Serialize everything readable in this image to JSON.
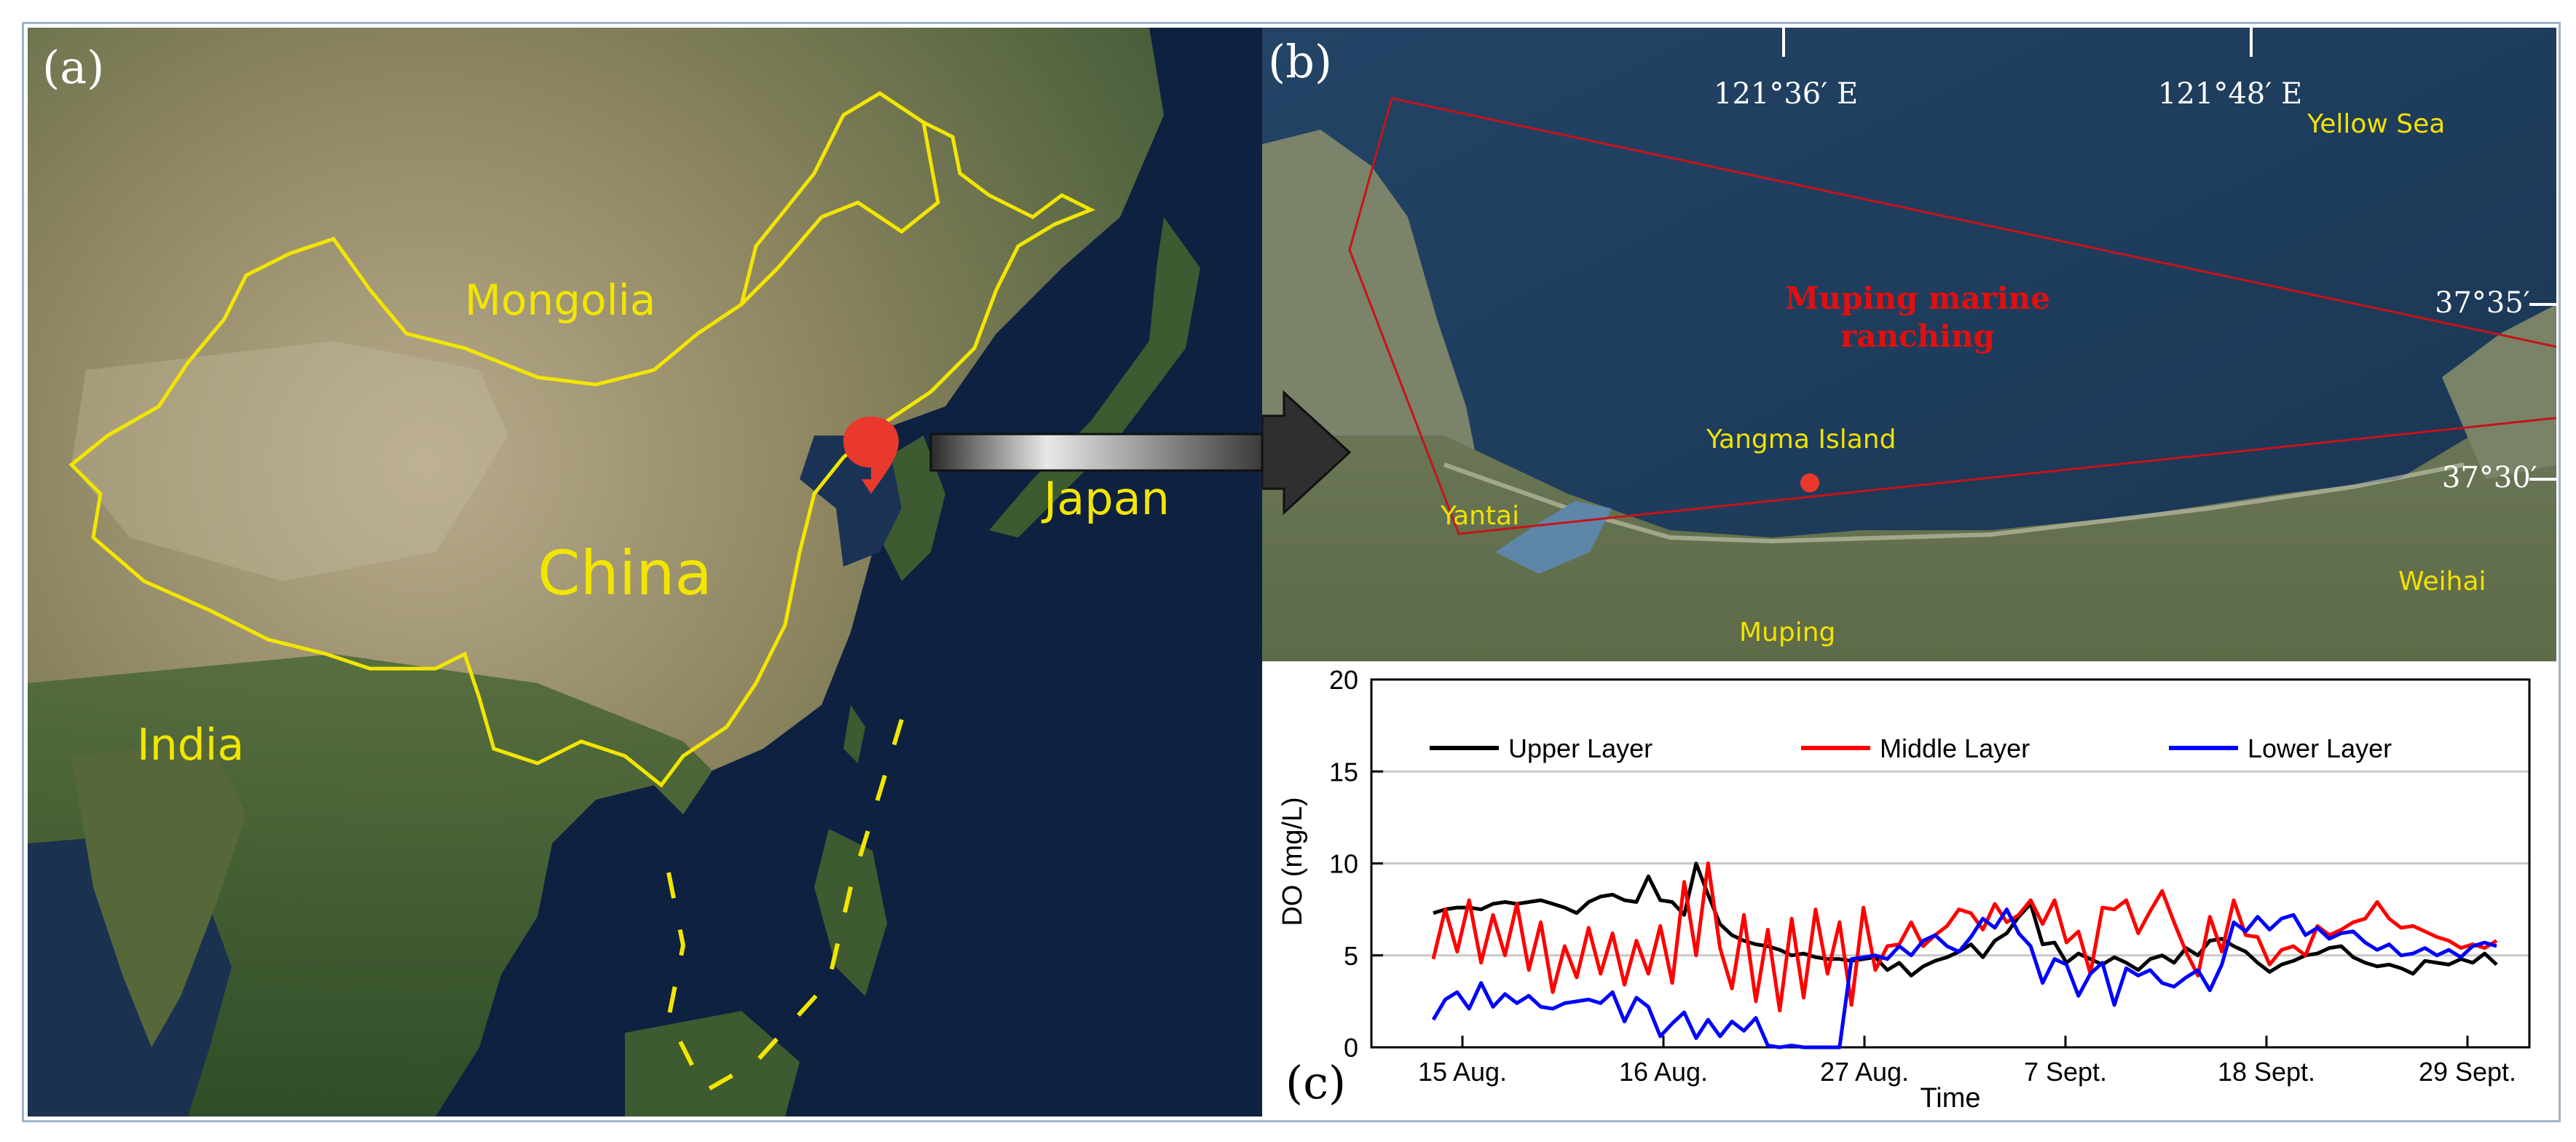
{
  "panel_a": {
    "label": "(a)",
    "countries": {
      "mongolia": "Mongolia",
      "china": "China",
      "japan": "Japan",
      "india": "India"
    }
  },
  "panel_b": {
    "label": "(b)",
    "longitudes": [
      "121°36′ E",
      "121°48′ E"
    ],
    "latitudes": [
      "37°35′",
      "37°30′"
    ],
    "sea": "Yellow Sea",
    "ranch_line1": "Muping marine",
    "ranch_line2": "ranching",
    "island": "Yangma Island",
    "cities": {
      "yantai": "Yantai",
      "muping": "Muping",
      "weihai": "Weihai"
    }
  },
  "colors": {
    "border": "#f2e600",
    "marker": "#e8392c",
    "upper": "#000000",
    "middle": "#ff0000",
    "lower": "#0000ff"
  },
  "chart_data": {
    "type": "line",
    "panel_label": "(c)",
    "xlabel": "Time",
    "ylabel": "DO (mg/L)",
    "ylim": [
      0,
      20
    ],
    "yticks": [
      0,
      5,
      10,
      15,
      20
    ],
    "xticks": [
      "15 Aug.",
      "16 Aug.",
      "27 Aug.",
      "7 Sept.",
      "18 Sept.",
      "29 Sept."
    ],
    "grid": "horizontal",
    "legend_position": "top",
    "series": [
      {
        "name": "Upper Layer",
        "color": "#000000",
        "values": [
          7.3,
          7.5,
          7.6,
          7.6,
          7.5,
          7.8,
          7.9,
          7.8,
          7.9,
          8.0,
          7.8,
          7.6,
          7.3,
          7.9,
          8.2,
          8.3,
          8.0,
          7.9,
          9.3,
          8.0,
          7.9,
          7.2,
          10.0,
          8.3,
          6.7,
          6.1,
          5.8,
          5.6,
          5.5,
          5.3,
          5.0,
          5.1,
          4.9,
          4.8,
          4.8,
          4.7,
          4.8,
          4.9,
          4.2,
          4.6,
          3.9,
          4.4,
          4.7,
          4.9,
          5.2,
          5.6,
          4.9,
          5.8,
          6.2,
          7.1,
          7.8,
          5.6,
          5.7,
          4.6,
          5.1,
          4.8,
          4.5,
          4.9,
          4.6,
          4.2,
          4.8,
          5.0,
          4.6,
          5.4,
          5.0,
          5.8,
          5.9,
          5.5,
          5.2,
          4.6,
          4.1,
          4.5,
          4.7,
          5.0,
          5.1,
          5.4,
          5.5,
          4.9,
          4.6,
          4.4,
          4.5,
          4.3,
          4.0,
          4.7,
          4.6,
          4.5,
          4.8,
          4.6,
          5.1,
          4.5
        ]
      },
      {
        "name": "Middle Layer",
        "color": "#ff0000",
        "values": [
          4.8,
          7.5,
          5.2,
          8.0,
          4.6,
          7.2,
          5.0,
          7.8,
          4.2,
          6.8,
          3.0,
          5.5,
          3.8,
          6.5,
          4.0,
          6.2,
          3.4,
          5.8,
          4.0,
          6.6,
          3.5,
          9.0,
          5.0,
          10.0,
          5.4,
          3.2,
          7.2,
          2.5,
          6.4,
          2.0,
          7.0,
          2.7,
          7.5,
          4.0,
          6.8,
          2.3,
          7.6,
          4.2,
          5.5,
          5.6,
          6.8,
          5.5,
          6.1,
          6.6,
          7.5,
          7.3,
          6.4,
          7.8,
          6.8,
          7.2,
          8.0,
          6.7,
          8.0,
          5.7,
          6.3,
          4.0,
          7.6,
          7.5,
          8.0,
          6.2,
          7.4,
          8.5,
          6.8,
          5.2,
          3.9,
          7.1,
          5.2,
          8.0,
          6.1,
          6.0,
          4.5,
          5.3,
          5.5,
          5.0,
          6.6,
          6.1,
          6.4,
          6.8,
          7.0,
          7.9,
          7.0,
          6.5,
          6.6,
          6.3,
          6.0,
          5.8,
          5.4,
          5.6,
          5.4,
          5.8
        ]
      },
      {
        "name": "Lower Layer",
        "color": "#0000ff",
        "values": [
          1.5,
          2.6,
          3.0,
          2.1,
          3.5,
          2.2,
          2.9,
          2.4,
          2.8,
          2.2,
          2.1,
          2.4,
          2.5,
          2.6,
          2.4,
          3.0,
          1.4,
          2.7,
          2.2,
          0.6,
          1.3,
          1.9,
          0.5,
          1.5,
          0.6,
          1.4,
          0.9,
          1.6,
          0.1,
          0.0,
          0.1,
          0.0,
          0.0,
          0.0,
          0.0,
          4.8,
          4.9,
          5.0,
          4.8,
          5.5,
          5.0,
          5.8,
          6.1,
          5.5,
          5.2,
          6.0,
          7.0,
          6.5,
          7.5,
          6.2,
          5.5,
          3.5,
          4.8,
          4.5,
          2.8,
          4.0,
          4.6,
          2.3,
          4.3,
          3.9,
          4.2,
          3.5,
          3.3,
          3.8,
          4.2,
          3.1,
          4.5,
          6.8,
          6.3,
          7.1,
          6.4,
          7.0,
          7.2,
          6.1,
          6.5,
          5.9,
          6.2,
          6.3,
          5.7,
          5.3,
          5.6,
          5.0,
          5.1,
          5.4,
          5.0,
          5.3,
          4.9,
          5.5,
          5.7,
          5.5
        ]
      }
    ]
  }
}
